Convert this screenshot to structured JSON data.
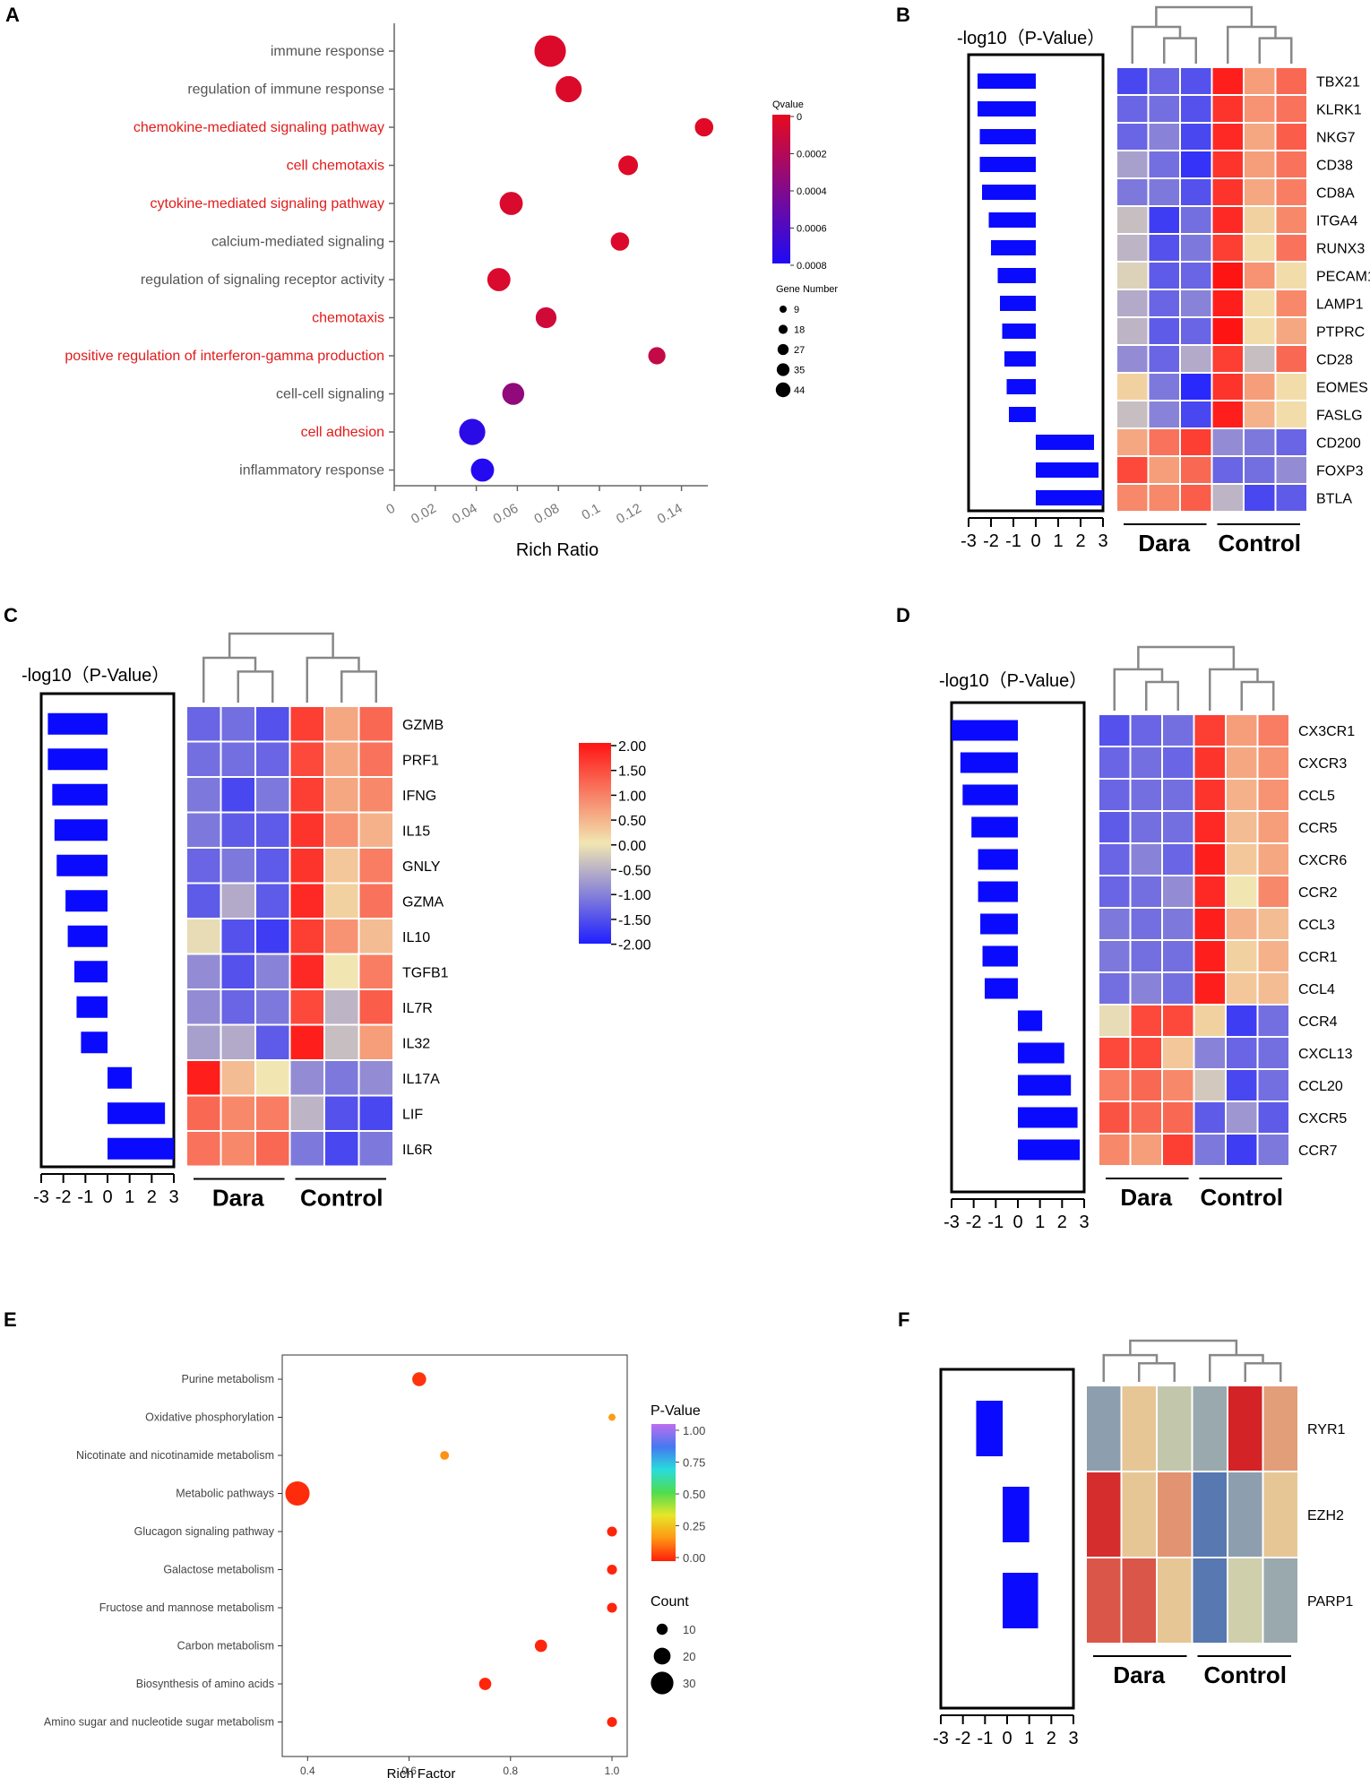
{
  "colors": {
    "hm_low": "#1f1fff",
    "hm_mid": "#f1e6b1",
    "hm_high": "#ff1414",
    "bar": "#0a0aff",
    "red_text": "#e21b1b",
    "gray_text": "#555555"
  },
  "panel_labels": [
    "A",
    "B",
    "C",
    "D",
    "E",
    "F"
  ],
  "common": {
    "pval_title": "-log10（P-Value）",
    "pval_ticks": [
      "-3",
      "-2",
      "-1",
      "0",
      "1",
      "2",
      "3"
    ],
    "group_dara": "Dara",
    "group_control": "Control"
  },
  "chart_data": [
    {
      "panel": "A",
      "type": "scatter",
      "xlabel": "Rich Ratio",
      "xlim": [
        0,
        0.15
      ],
      "xticks": [
        "0",
        "0.02",
        "0.04",
        "0.06",
        "0.08",
        "0.1",
        "0.12",
        "0.14"
      ],
      "legend_q_title": "Qvalue",
      "legend_q_ticks": [
        "0",
        "0.0002",
        "0.0004",
        "0.0006",
        "0.0008"
      ],
      "legend_q_range": [
        0,
        0.0008
      ],
      "legend_gene_title": "Gene Number",
      "legend_gene_values": [
        9,
        18,
        27,
        35,
        44
      ],
      "terms": [
        {
          "name": "immune response",
          "x": 0.076,
          "q": 5e-05,
          "count": 44,
          "highlight": false
        },
        {
          "name": "regulation of immune response",
          "x": 0.085,
          "q": 5e-05,
          "count": 35,
          "highlight": false
        },
        {
          "name": "chemokine-mediated signaling pathway",
          "x": 0.151,
          "q": 3e-05,
          "count": 22,
          "highlight": true
        },
        {
          "name": "cell chemotaxis",
          "x": 0.114,
          "q": 4e-05,
          "count": 24,
          "highlight": true
        },
        {
          "name": "cytokine-mediated signaling pathway",
          "x": 0.057,
          "q": 6e-05,
          "count": 30,
          "highlight": true
        },
        {
          "name": "calcium-mediated signaling",
          "x": 0.11,
          "q": 5e-05,
          "count": 22,
          "highlight": false
        },
        {
          "name": "regulation of signaling receptor activity",
          "x": 0.051,
          "q": 6e-05,
          "count": 30,
          "highlight": false
        },
        {
          "name": "chemotaxis",
          "x": 0.074,
          "q": 0.0001,
          "count": 26,
          "highlight": true
        },
        {
          "name": "positive regulation of interferon-gamma production",
          "x": 0.128,
          "q": 0.00015,
          "count": 20,
          "highlight": true
        },
        {
          "name": "cell-cell signaling",
          "x": 0.058,
          "q": 0.00035,
          "count": 28,
          "highlight": false
        },
        {
          "name": "cell adhesion",
          "x": 0.038,
          "q": 0.00075,
          "count": 35,
          "highlight": true
        },
        {
          "name": "inflammatory response",
          "x": 0.043,
          "q": 0.00078,
          "count": 30,
          "highlight": false
        }
      ]
    },
    {
      "panel": "B",
      "type": "heatmap",
      "genes": [
        "TBX21",
        "KLRK1",
        "NKG7",
        "CD38",
        "CD8A",
        "ITGA4",
        "RUNX3",
        "PECAM1",
        "LAMP1",
        "PTPRC",
        "CD28",
        "EOMES",
        "FASLG",
        "CD200",
        "FOXP3",
        "BTLA"
      ],
      "bars": [
        -2.6,
        -2.6,
        -2.5,
        -2.5,
        -2.4,
        -2.1,
        -2.0,
        -1.7,
        -1.6,
        -1.5,
        -1.4,
        -1.3,
        -1.2,
        2.6,
        2.8,
        3.0
      ],
      "values": [
        [
          -1.6,
          -1.3,
          -1.5,
          1.9,
          0.7,
          1.2
        ],
        [
          -1.3,
          -1.2,
          -1.5,
          1.7,
          0.8,
          1.1
        ],
        [
          -1.3,
          -1.0,
          -1.6,
          1.8,
          0.6,
          1.3
        ],
        [
          -0.7,
          -1.2,
          -1.8,
          1.7,
          0.7,
          1.1
        ],
        [
          -1.1,
          -1.1,
          -1.5,
          1.7,
          0.6,
          1.0
        ],
        [
          -0.4,
          -1.7,
          -1.2,
          1.8,
          0.2,
          0.9
        ],
        [
          -0.5,
          -1.5,
          -1.1,
          1.6,
          0.1,
          1.1
        ],
        [
          -0.2,
          -1.4,
          -1.3,
          2.0,
          0.8,
          0.1
        ],
        [
          -0.6,
          -1.3,
          -1.0,
          1.9,
          0.1,
          0.9
        ],
        [
          -0.5,
          -1.4,
          -1.3,
          2.0,
          0.1,
          0.6
        ],
        [
          -0.9,
          -1.3,
          -0.6,
          1.6,
          -0.4,
          1.2
        ],
        [
          0.2,
          -1.1,
          -1.9,
          1.7,
          0.7,
          0.1
        ],
        [
          -0.4,
          -1.0,
          -1.6,
          1.9,
          0.5,
          0.1
        ],
        [
          0.6,
          1.1,
          1.6,
          -0.9,
          -1.1,
          -1.3
        ],
        [
          1.5,
          0.7,
          1.2,
          -1.3,
          -1.2,
          -0.9
        ],
        [
          0.9,
          0.9,
          1.3,
          -0.5,
          -1.6,
          -1.4
        ]
      ]
    },
    {
      "panel": "C",
      "type": "heatmap",
      "genes": [
        "GZMB",
        "PRF1",
        "IFNG",
        "IL15",
        "GNLY",
        "GZMA",
        "IL10",
        "TGFB1",
        "IL7R",
        "IL32",
        "IL17A",
        "LIF",
        "IL6R"
      ],
      "bars": [
        -2.7,
        -2.7,
        -2.5,
        -2.4,
        -2.3,
        -1.9,
        -1.8,
        -1.5,
        -1.4,
        -1.2,
        1.1,
        2.6,
        3.0
      ],
      "values": [
        [
          -1.3,
          -1.2,
          -1.5,
          1.6,
          0.6,
          1.2
        ],
        [
          -1.2,
          -1.2,
          -1.3,
          1.5,
          0.6,
          1.1
        ],
        [
          -1.1,
          -1.6,
          -1.1,
          1.6,
          0.6,
          0.9
        ],
        [
          -1.1,
          -1.4,
          -1.4,
          1.7,
          0.8,
          0.5
        ],
        [
          -1.3,
          -1.1,
          -1.4,
          1.7,
          0.3,
          1.0
        ],
        [
          -1.4,
          -0.6,
          -1.4,
          1.8,
          0.2,
          1.1
        ],
        [
          -0.1,
          -1.5,
          -1.7,
          1.6,
          0.8,
          0.4
        ],
        [
          -0.9,
          -1.5,
          -1.0,
          1.8,
          0.0,
          1.0
        ],
        [
          -0.9,
          -1.3,
          -1.1,
          1.5,
          -0.5,
          1.3
        ],
        [
          -0.7,
          -0.6,
          -1.4,
          1.9,
          -0.4,
          0.7
        ],
        [
          1.9,
          0.4,
          0.0,
          -0.9,
          -1.1,
          -0.9
        ],
        [
          1.2,
          0.9,
          1.0,
          -0.5,
          -1.5,
          -1.6
        ],
        [
          1.1,
          0.9,
          1.2,
          -1.1,
          -1.6,
          -1.1
        ]
      ],
      "colorbar_ticks": [
        "2.00",
        "1.50",
        "1.00",
        "0.50",
        "0.00",
        "-0.50",
        "-1.00",
        "-1.50",
        "-2.00"
      ]
    },
    {
      "panel": "D",
      "type": "heatmap",
      "genes": [
        "CX3CR1",
        "CXCR3",
        "CCL5",
        "CCR5",
        "CXCR6",
        "CCR2",
        "CCL3",
        "CCR1",
        "CCL4",
        "CCR4",
        "CXCL13",
        "CCL20",
        "CXCR5",
        "CCR7"
      ],
      "bars": [
        -3.0,
        -2.6,
        -2.5,
        -2.1,
        -1.8,
        -1.8,
        -1.7,
        -1.6,
        -1.5,
        1.1,
        2.1,
        2.4,
        2.7,
        2.8
      ],
      "values": [
        [
          -1.5,
          -1.3,
          -1.2,
          1.6,
          0.7,
          1.0
        ],
        [
          -1.3,
          -1.2,
          -1.3,
          1.7,
          0.6,
          0.8
        ],
        [
          -1.3,
          -1.2,
          -1.2,
          1.7,
          0.5,
          0.8
        ],
        [
          -1.4,
          -1.2,
          -1.2,
          1.8,
          0.4,
          0.7
        ],
        [
          -1.3,
          -1.0,
          -1.3,
          1.9,
          0.3,
          0.6
        ],
        [
          -1.3,
          -1.2,
          -0.9,
          1.8,
          0.0,
          0.9
        ],
        [
          -1.1,
          -1.2,
          -1.1,
          1.9,
          0.5,
          0.4
        ],
        [
          -1.1,
          -1.2,
          -1.2,
          1.9,
          0.2,
          0.5
        ],
        [
          -1.2,
          -1.0,
          -1.2,
          1.9,
          0.3,
          0.4
        ],
        [
          -0.1,
          1.5,
          1.5,
          0.2,
          -1.7,
          -1.2
        ],
        [
          1.5,
          1.5,
          0.3,
          -1.0,
          -1.3,
          -1.2
        ],
        [
          1.0,
          1.2,
          0.9,
          -0.3,
          -1.6,
          -1.2
        ],
        [
          1.4,
          1.2,
          1.2,
          -1.4,
          -0.8,
          -1.4
        ],
        [
          0.9,
          0.7,
          1.6,
          -1.1,
          -1.7,
          -1.1
        ]
      ]
    },
    {
      "panel": "E",
      "type": "scatter",
      "xlabel": "Rich Factor",
      "xlim": [
        0.35,
        1.03
      ],
      "xticks": [
        "0.4",
        "0.6",
        "0.8",
        "1.0"
      ],
      "legend_p_title": "P-Value",
      "legend_p_ticks": [
        "1.00",
        "0.75",
        "0.50",
        "0.25",
        "0.00"
      ],
      "legend_p_range": [
        0,
        1
      ],
      "legend_count_title": "Count",
      "legend_count_values": [
        10,
        20,
        30
      ],
      "pathways": [
        {
          "name": "Purine metabolism",
          "x": 0.62,
          "p": 0.03,
          "count": 15
        },
        {
          "name": "Oxidative phosphorylation",
          "x": 1.0,
          "p": 0.18,
          "count": 3
        },
        {
          "name": "Nicotinate and nicotinamide metabolism",
          "x": 0.67,
          "p": 0.16,
          "count": 6
        },
        {
          "name": "Metabolic pathways",
          "x": 0.38,
          "p": 0.02,
          "count": 33
        },
        {
          "name": "Glucagon signaling pathway",
          "x": 1.0,
          "p": 0.01,
          "count": 8
        },
        {
          "name": "Galactose metabolism",
          "x": 1.0,
          "p": 0.01,
          "count": 8
        },
        {
          "name": "Fructose and mannose metabolism",
          "x": 1.0,
          "p": 0.01,
          "count": 8
        },
        {
          "name": "Carbon metabolism",
          "x": 0.86,
          "p": 0.01,
          "count": 12
        },
        {
          "name": "Biosynthesis of amino acids",
          "x": 0.75,
          "p": 0.01,
          "count": 12
        },
        {
          "name": "Amino sugar and nucleotide sugar metabolism",
          "x": 1.0,
          "p": 0.01,
          "count": 8
        }
      ]
    },
    {
      "panel": "F",
      "type": "heatmap",
      "genes": [
        "RYR1",
        "EZH2",
        "PARP1"
      ],
      "bars": [
        -1.4,
        1.0,
        1.4
      ],
      "bar_start": [
        -0.2,
        -0.2,
        -0.2
      ],
      "values": [
        [
          -0.7,
          0.3,
          -0.3,
          -0.6,
          1.9,
          0.7
        ],
        [
          1.8,
          0.3,
          0.8,
          -1.1,
          -0.7,
          0.3
        ],
        [
          1.4,
          1.4,
          0.3,
          -1.1,
          -0.2,
          -0.6
        ]
      ]
    }
  ]
}
